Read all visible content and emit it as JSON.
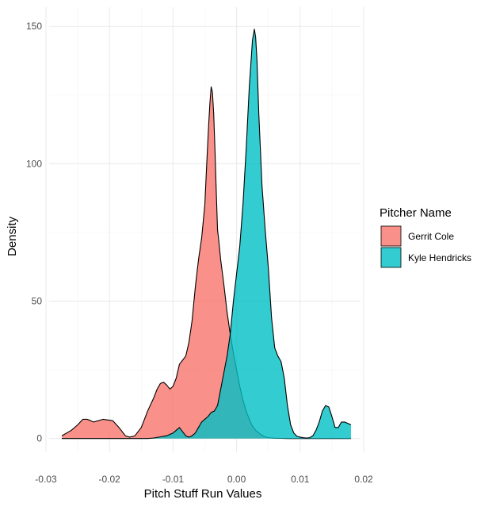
{
  "chart_data": {
    "type": "area",
    "subtype": "density",
    "title": "",
    "xlabel": "Pitch Stuff Run Values",
    "ylabel": "Density",
    "xlim": [
      -0.0295,
      0.0195
    ],
    "ylim": [
      -5,
      157
    ],
    "x_ticks": [
      -0.03,
      -0.02,
      -0.01,
      0.0,
      0.01,
      0.02
    ],
    "x_tick_labels": [
      "-0.03",
      "-0.02",
      "-0.01",
      "0.00",
      "0.01",
      "0.02"
    ],
    "y_ticks": [
      0,
      50,
      100,
      150
    ],
    "y_tick_labels": [
      "0",
      "50",
      "100",
      "150"
    ],
    "grid": true,
    "legend": {
      "title": "Pitcher Name",
      "placement": "right"
    },
    "series": [
      {
        "name": "Gerrit Cole",
        "color": "#F8766D",
        "opacity": 0.8,
        "x": [
          -0.0275,
          -0.026,
          -0.025,
          -0.0242,
          -0.0235,
          -0.0225,
          -0.021,
          -0.0195,
          -0.0185,
          -0.0175,
          -0.0168,
          -0.016,
          -0.015,
          -0.014,
          -0.013,
          -0.0125,
          -0.012,
          -0.0115,
          -0.011,
          -0.0105,
          -0.01,
          -0.0095,
          -0.009,
          -0.0085,
          -0.008,
          -0.0075,
          -0.007,
          -0.0065,
          -0.006,
          -0.0055,
          -0.005,
          -0.0047,
          -0.0044,
          -0.0042,
          -0.004,
          -0.0038,
          -0.0036,
          -0.0034,
          -0.0032,
          -0.003,
          -0.0028,
          -0.0025,
          -0.002,
          -0.0015,
          -0.001,
          -0.0005,
          0.0,
          0.0005,
          0.001,
          0.0015,
          0.002,
          0.0025,
          0.003,
          0.0035,
          0.004,
          0.0045,
          0.005,
          0.006,
          0.007,
          0.008,
          0.009,
          0.01,
          0.011,
          0.012,
          0.013,
          0.014,
          0.015,
          0.016,
          0.017,
          0.018
        ],
        "y": [
          1,
          3,
          5,
          7,
          7,
          6,
          7,
          6.5,
          4,
          1,
          0.5,
          1,
          4,
          10,
          15,
          18,
          20,
          20.5,
          19.5,
          18,
          19,
          22,
          27,
          28.5,
          30,
          35,
          43,
          55,
          65,
          73,
          85,
          100,
          114,
          122,
          128,
          126,
          118,
          105,
          90,
          76,
          72,
          65,
          56,
          46,
          38,
          31,
          25,
          19,
          14,
          10,
          7,
          4.5,
          3,
          2,
          1.2,
          0.6,
          0.3,
          0.1,
          0.05,
          0,
          0,
          0,
          0,
          0,
          0,
          0,
          0,
          0,
          0,
          0
        ]
      },
      {
        "name": "Kyle Hendricks",
        "color": "#00BFC4",
        "opacity": 0.8,
        "x": [
          -0.0275,
          -0.014,
          -0.013,
          -0.012,
          -0.011,
          -0.0105,
          -0.01,
          -0.0095,
          -0.009,
          -0.0085,
          -0.008,
          -0.0075,
          -0.007,
          -0.0065,
          -0.006,
          -0.0055,
          -0.005,
          -0.0045,
          -0.004,
          -0.0035,
          -0.003,
          -0.0025,
          -0.002,
          -0.0015,
          -0.001,
          -0.0005,
          0.0,
          0.0005,
          0.001,
          0.0015,
          0.002,
          0.0025,
          0.0028,
          0.003,
          0.0032,
          0.0035,
          0.004,
          0.0045,
          0.005,
          0.0055,
          0.006,
          0.0065,
          0.007,
          0.0075,
          0.008,
          0.0085,
          0.009,
          0.0095,
          0.01,
          0.0105,
          0.011,
          0.0115,
          0.012,
          0.0125,
          0.013,
          0.0135,
          0.014,
          0.0145,
          0.015,
          0.0155,
          0.016,
          0.0165,
          0.017,
          0.0175,
          0.018
        ],
        "y": [
          0,
          0,
          0.2,
          0.6,
          1,
          1.5,
          2,
          3,
          4,
          2.5,
          1,
          0.5,
          1,
          2,
          4,
          6,
          7,
          8,
          9.5,
          10,
          12,
          18,
          24,
          30,
          38,
          50,
          60,
          70,
          85,
          105,
          128,
          145,
          149,
          146,
          138,
          118,
          92,
          76,
          62,
          44,
          33,
          30,
          28,
          22,
          12,
          5,
          2,
          0.8,
          0.5,
          0.3,
          0.2,
          0.3,
          1,
          3,
          6,
          10,
          12,
          11.5,
          8,
          4,
          4,
          6,
          6,
          5.5,
          5
        ]
      }
    ]
  }
}
